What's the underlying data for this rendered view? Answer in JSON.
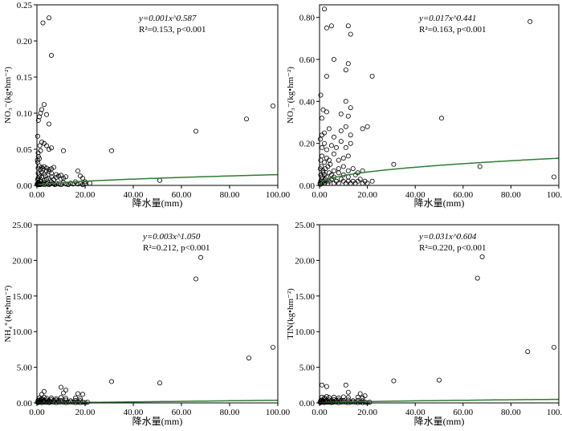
{
  "chart_data": [
    {
      "type": "scatter",
      "xlabel": "降水量(mm)",
      "ylabel": "NO₃⁻(kg•hm⁻²)",
      "equation": "y=0.001x^0.587",
      "stats": "R²=0.153, p<0.001",
      "xlim": [
        0,
        100
      ],
      "ylim": [
        0,
        0.25
      ],
      "xticks": [
        "0.00",
        "20.00",
        "40.00",
        "60.00",
        "80.00",
        "100.00"
      ],
      "yticks": [
        "0.00",
        "0.05",
        "0.10",
        "0.15",
        "0.20",
        "0.25"
      ],
      "fit": {
        "a": 0.001,
        "b": 0.587,
        "color": "#2e7d32"
      },
      "x": [
        0.1,
        0.2,
        0.3,
        0.4,
        0.5,
        0.6,
        0.8,
        1.0,
        1.2,
        1.4,
        1.5,
        2.0,
        2.5,
        3.0,
        3.0,
        4.0,
        4.5,
        5.0,
        5.5,
        6.0,
        6.5,
        7.0,
        7.5,
        8.0,
        9.0,
        10.0,
        11.0,
        12.0,
        13.0,
        14.0,
        15.0,
        16.0,
        17.0,
        18.0,
        19.0,
        20.0,
        22.0,
        0.3,
        0.5,
        1.0,
        1.5,
        2.0,
        3.0,
        3.5,
        4.0,
        5.0,
        6.0,
        7.0,
        8.0,
        9.0,
        10.0,
        11.0,
        12.0,
        0.5,
        1.0,
        2.0,
        3.0,
        4.0,
        5.0,
        6.0,
        8.0,
        10.0,
        0.5,
        1.0,
        1.5,
        2.0,
        2.5,
        3.0,
        4.0,
        5.0,
        6.0,
        7.0,
        0.2,
        0.3,
        0.5,
        0.6,
        1.0,
        1.2,
        1.5,
        2.0,
        3.0,
        4.0,
        5.0,
        6.0,
        0.3,
        0.6,
        1.0,
        1.5,
        2.0,
        3.0,
        4.0,
        2.5,
        5.0,
        6.0,
        5.0,
        11.0,
        17.0,
        18.0,
        19.0,
        20.0,
        31.0,
        51.0,
        66.0,
        87.0,
        98.0
      ],
      "y": [
        0.002,
        0.001,
        0.003,
        0.001,
        0.002,
        0.004,
        0.001,
        0.003,
        0.002,
        0.001,
        0.005,
        0.002,
        0.003,
        0.001,
        0.004,
        0.002,
        0.003,
        0.001,
        0.002,
        0.005,
        0.003,
        0.002,
        0.001,
        0.003,
        0.002,
        0.001,
        0.004,
        0.002,
        0.001,
        0.003,
        0.002,
        0.005,
        0.002,
        0.003,
        0.001,
        0.002,
        0.003,
        0.008,
        0.01,
        0.012,
        0.008,
        0.011,
        0.007,
        0.013,
        0.009,
        0.01,
        0.012,
        0.008,
        0.011,
        0.013,
        0.009,
        0.01,
        0.012,
        0.017,
        0.015,
        0.018,
        0.016,
        0.02,
        0.019,
        0.017,
        0.015,
        0.014,
        0.024,
        0.027,
        0.022,
        0.025,
        0.023,
        0.026,
        0.024,
        0.022,
        0.023,
        0.025,
        0.035,
        0.032,
        0.045,
        0.04,
        0.037,
        0.055,
        0.048,
        0.06,
        0.058,
        0.055,
        0.05,
        0.052,
        0.068,
        0.09,
        0.095,
        0.1,
        0.105,
        0.112,
        0.098,
        0.225,
        0.232,
        0.18,
        0.085,
        0.048,
        0.02,
        0.013,
        0.01,
        0.005,
        0.048,
        0.007,
        0.075,
        0.092,
        0.11
      ]
    },
    {
      "type": "scatter",
      "xlabel": "降水量(mm)",
      "ylabel": "NO₃⁻(kg•hm⁻²)",
      "equation": "y=0.017x^0.441",
      "stats": "R²=0.163, p<0.001",
      "xlim": [
        0,
        100
      ],
      "ylim": [
        0,
        0.86
      ],
      "xticks": [
        "0.00",
        "20.00",
        "40.00",
        "60.00",
        "80.00",
        "100.00"
      ],
      "yticks": [
        "0.00",
        "0.20",
        "0.40",
        "0.60",
        "0.80"
      ],
      "fit": {
        "a": 0.017,
        "b": 0.441,
        "color": "#2e7d32"
      },
      "x": [
        0.2,
        0.3,
        0.5,
        0.8,
        1.0,
        1.2,
        1.5,
        2.0,
        2.5,
        3.0,
        3.5,
        4.0,
        5.0,
        6.0,
        7.0,
        8.0,
        9.0,
        10.0,
        11.0,
        12.0,
        13.0,
        14.0,
        15.0,
        16.0,
        17.0,
        18.0,
        19.0,
        20.0,
        22.0,
        0.5,
        1.0,
        1.5,
        2.0,
        3.0,
        4.0,
        5.0,
        6.0,
        8.0,
        10.0,
        12.0,
        15.0,
        0.3,
        0.8,
        1.5,
        2.5,
        3.5,
        4.5,
        6.0,
        8.0,
        10.0,
        12.0,
        14.0,
        16.0,
        18.0,
        0.5,
        1.0,
        2.0,
        3.0,
        4.0,
        6.0,
        8.0,
        10.0,
        12.0,
        1.0,
        2.0,
        3.0,
        5.0,
        7.0,
        9.0,
        11.0,
        13.0,
        0.3,
        1.0,
        2.0,
        4.0,
        6.0,
        9.0,
        11.0,
        13.0,
        1.0,
        3.0,
        9.0,
        11.0,
        12.0,
        0.5,
        1.5,
        3.0,
        6.0,
        11.0,
        12.0,
        3.0,
        22.0,
        13.0,
        12.0,
        2.0,
        5.0,
        13.0,
        20.0,
        18.0,
        31.0,
        51.0,
        67.0,
        88.0,
        98.0
      ],
      "y": [
        0.01,
        0.005,
        0.02,
        0.01,
        0.03,
        0.01,
        0.02,
        0.01,
        0.03,
        0.02,
        0.01,
        0.02,
        0.03,
        0.01,
        0.02,
        0.01,
        0.03,
        0.02,
        0.01,
        0.02,
        0.01,
        0.02,
        0.01,
        0.02,
        0.03,
        0.01,
        0.02,
        0.01,
        0.02,
        0.05,
        0.04,
        0.06,
        0.05,
        0.04,
        0.06,
        0.05,
        0.04,
        0.06,
        0.05,
        0.04,
        0.05,
        0.08,
        0.09,
        0.07,
        0.08,
        0.09,
        0.1,
        0.07,
        0.08,
        0.09,
        0.07,
        0.08,
        0.06,
        0.07,
        0.12,
        0.14,
        0.11,
        0.13,
        0.12,
        0.15,
        0.12,
        0.13,
        0.14,
        0.18,
        0.2,
        0.17,
        0.19,
        0.18,
        0.21,
        0.18,
        0.2,
        0.22,
        0.24,
        0.25,
        0.27,
        0.23,
        0.26,
        0.28,
        0.24,
        0.32,
        0.35,
        0.34,
        0.4,
        0.33,
        0.43,
        0.36,
        0.52,
        0.6,
        0.55,
        0.58,
        0.75,
        0.52,
        0.72,
        0.76,
        0.84,
        0.76,
        0.37,
        0.28,
        0.27,
        0.1,
        0.32,
        0.09,
        0.78,
        0.04
      ]
    },
    {
      "type": "scatter",
      "xlabel": "降水量(mm)",
      "ylabel": "NH₄⁺(kg•hm⁻²)",
      "equation": "y=0.003x^1.050",
      "stats": "R²=0.212, p<0.001",
      "xlim": [
        0,
        100
      ],
      "ylim": [
        0,
        25
      ],
      "xticks": [
        "0.00",
        "20.00",
        "40.00",
        "60.00",
        "80.00",
        "100.00"
      ],
      "yticks": [
        "0.00",
        "5.00",
        "10.00",
        "15.00",
        "20.00",
        "25.00"
      ],
      "fit": {
        "a": 0.003,
        "b": 1.05,
        "color": "#2e7d32"
      },
      "x": [
        0.2,
        0.4,
        0.6,
        0.8,
        1.0,
        1.3,
        1.6,
        2.0,
        2.5,
        3.0,
        3.5,
        4.0,
        4.5,
        5.0,
        5.5,
        6.0,
        7.0,
        8.0,
        9.0,
        10.0,
        11.0,
        12.0,
        13.0,
        14.0,
        15.0,
        16.0,
        17.0,
        18.0,
        19.0,
        20.0,
        21.0,
        0.5,
        1.0,
        1.5,
        2.0,
        3.0,
        4.0,
        5.0,
        6.0,
        7.0,
        8.0,
        9.0,
        10.0,
        12.0,
        14.0,
        16.0,
        18.0,
        1.0,
        2.0,
        3.0,
        4.0,
        6.0,
        8.0,
        10.0,
        12.0,
        16.0,
        18.0,
        2.0,
        3.0,
        11.0,
        10.0,
        12.0,
        17.0,
        19.0,
        31.0,
        51.0,
        66.0,
        68.0,
        88.0,
        98.0
      ],
      "y": [
        0.1,
        0.05,
        0.15,
        0.1,
        0.2,
        0.1,
        0.15,
        0.05,
        0.2,
        0.1,
        0.15,
        0.1,
        0.2,
        0.05,
        0.1,
        0.15,
        0.1,
        0.05,
        0.1,
        0.15,
        0.1,
        0.05,
        0.1,
        0.15,
        0.1,
        0.05,
        0.1,
        0.05,
        0.1,
        0.05,
        0.1,
        0.35,
        0.4,
        0.3,
        0.45,
        0.35,
        0.4,
        0.3,
        0.45,
        0.35,
        0.4,
        0.3,
        0.35,
        0.4,
        0.3,
        0.35,
        0.3,
        0.7,
        0.6,
        0.8,
        0.65,
        0.7,
        0.6,
        0.75,
        0.65,
        0.7,
        0.6,
        1.2,
        1.6,
        1.4,
        2.2,
        1.8,
        1.3,
        1.2,
        3.0,
        2.8,
        17.4,
        20.4,
        6.3,
        7.8
      ]
    },
    {
      "type": "scatter",
      "xlabel": "降水量(mm)",
      "ylabel": "TIN(kg•hm⁻²)",
      "equation": "y=0.031x^0.604",
      "stats": "R²=0.220, p<0.001",
      "xlim": [
        0,
        100
      ],
      "ylim": [
        0,
        25
      ],
      "xticks": [
        "0.00",
        "20.00",
        "40.00",
        "60.00",
        "80.00",
        "100.00"
      ],
      "yticks": [
        "0.00",
        "5.00",
        "10.00",
        "15.00",
        "20.00",
        "25.00"
      ],
      "fit": {
        "a": 0.031,
        "b": 0.604,
        "color": "#2e7d32"
      },
      "x": [
        0.2,
        0.4,
        0.6,
        0.8,
        1.0,
        1.3,
        1.6,
        2.0,
        2.5,
        3.0,
        3.5,
        4.0,
        4.5,
        5.0,
        5.5,
        6.0,
        7.0,
        8.0,
        9.0,
        10.0,
        11.0,
        12.0,
        13.0,
        14.0,
        15.0,
        16.0,
        17.0,
        18.0,
        19.0,
        20.0,
        21.0,
        0.5,
        1.0,
        1.5,
        2.0,
        3.0,
        4.0,
        5.0,
        6.0,
        7.0,
        8.0,
        9.0,
        10.0,
        12.0,
        14.0,
        16.0,
        18.0,
        1.0,
        2.0,
        3.0,
        4.0,
        6.0,
        8.0,
        10.0,
        12.0,
        16.0,
        18.0,
        1.0,
        3.0,
        11.0,
        12.0,
        17.0,
        19.0,
        31.0,
        50.0,
        66.0,
        68.0,
        87.0,
        98.0
      ],
      "y": [
        0.1,
        0.05,
        0.15,
        0.1,
        0.2,
        0.1,
        0.15,
        0.05,
        0.2,
        0.1,
        0.15,
        0.1,
        0.2,
        0.05,
        0.1,
        0.15,
        0.1,
        0.05,
        0.1,
        0.15,
        0.1,
        0.05,
        0.1,
        0.15,
        0.1,
        0.05,
        0.1,
        0.05,
        0.1,
        0.05,
        0.1,
        0.35,
        0.4,
        0.3,
        0.45,
        0.35,
        0.4,
        0.3,
        0.45,
        0.35,
        0.4,
        0.3,
        0.35,
        0.4,
        0.3,
        0.35,
        0.3,
        0.8,
        0.7,
        0.9,
        0.75,
        0.8,
        0.7,
        0.85,
        0.75,
        0.8,
        0.7,
        2.5,
        2.3,
        2.5,
        1.5,
        1.3,
        1.0,
        3.1,
        3.2,
        17.5,
        20.5,
        7.2,
        7.8
      ]
    }
  ]
}
